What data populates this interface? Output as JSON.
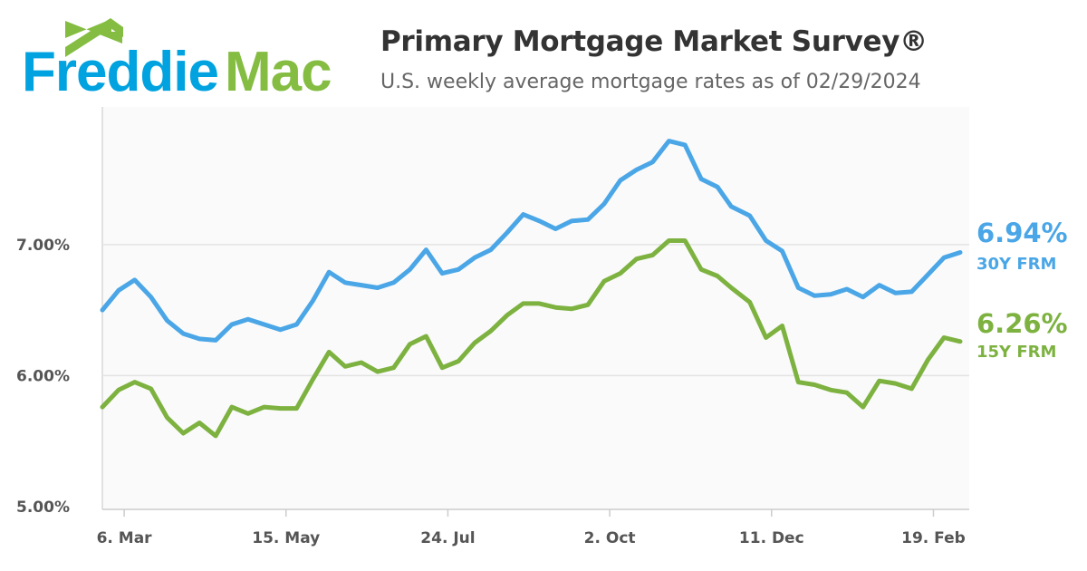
{
  "header": {
    "logo_text_1": "Freddie",
    "logo_text_2": "Mac",
    "title": "Primary Mortgage Market Survey®",
    "subtitle": "U.S. weekly average mortgage rates as of 02/29/2024"
  },
  "colors": {
    "blue": "#4aa6e6",
    "green": "#7db240",
    "logo_blue": "#00a3e0",
    "logo_green": "#84bd41"
  },
  "chart_data": {
    "type": "line",
    "title": "Primary Mortgage Market Survey®",
    "subtitle": "U.S. weekly average mortgage rates as of 02/29/2024",
    "x": [
      "2023-02-23",
      "2023-03-02",
      "2023-03-09",
      "2023-03-16",
      "2023-03-23",
      "2023-03-30",
      "2023-04-06",
      "2023-04-13",
      "2023-04-20",
      "2023-04-27",
      "2023-05-04",
      "2023-05-11",
      "2023-05-18",
      "2023-05-25",
      "2023-06-01",
      "2023-06-08",
      "2023-06-15",
      "2023-06-22",
      "2023-06-29",
      "2023-07-06",
      "2023-07-13",
      "2023-07-20",
      "2023-07-27",
      "2023-08-03",
      "2023-08-10",
      "2023-08-17",
      "2023-08-24",
      "2023-08-31",
      "2023-09-07",
      "2023-09-14",
      "2023-09-21",
      "2023-09-28",
      "2023-10-05",
      "2023-10-12",
      "2023-10-19",
      "2023-10-26",
      "2023-11-02",
      "2023-11-09",
      "2023-11-16",
      "2023-11-22",
      "2023-11-30",
      "2023-12-07",
      "2023-12-14",
      "2023-12-21",
      "2023-12-28",
      "2024-01-04",
      "2024-01-11",
      "2024-01-18",
      "2024-01-25",
      "2024-02-01",
      "2024-02-08",
      "2024-02-15",
      "2024-02-22",
      "2024-02-29"
    ],
    "series": [
      {
        "name": "30Y FRM",
        "color": "#4aa6e6",
        "last_label": "6.94%",
        "values": [
          6.5,
          6.65,
          6.73,
          6.6,
          6.42,
          6.32,
          6.28,
          6.27,
          6.39,
          6.43,
          6.39,
          6.35,
          6.39,
          6.57,
          6.79,
          6.71,
          6.69,
          6.67,
          6.71,
          6.81,
          6.96,
          6.78,
          6.81,
          6.9,
          6.96,
          7.09,
          7.23,
          7.18,
          7.12,
          7.18,
          7.19,
          7.31,
          7.49,
          7.57,
          7.63,
          7.79,
          7.76,
          7.5,
          7.44,
          7.29,
          7.22,
          7.03,
          6.95,
          6.67,
          6.61,
          6.62,
          6.66,
          6.6,
          6.69,
          6.63,
          6.64,
          6.77,
          6.9,
          6.94
        ]
      },
      {
        "name": "15Y FRM",
        "color": "#7db240",
        "last_label": "6.26%",
        "values": [
          5.76,
          5.89,
          5.95,
          5.9,
          5.68,
          5.56,
          5.64,
          5.54,
          5.76,
          5.71,
          5.76,
          5.75,
          5.75,
          5.97,
          6.18,
          6.07,
          6.1,
          6.03,
          6.06,
          6.24,
          6.3,
          6.06,
          6.11,
          6.25,
          6.34,
          6.46,
          6.55,
          6.55,
          6.52,
          6.51,
          6.54,
          6.72,
          6.78,
          6.89,
          6.92,
          7.03,
          7.03,
          6.81,
          6.76,
          6.67,
          6.56,
          6.29,
          6.38,
          5.95,
          5.93,
          5.89,
          5.87,
          5.76,
          5.96,
          5.94,
          5.9,
          6.12,
          6.29,
          6.26
        ]
      }
    ],
    "yticks": [
      {
        "value": 5,
        "label": "5.00%"
      },
      {
        "value": 6,
        "label": "6.00%"
      },
      {
        "value": 7,
        "label": "7.00%"
      }
    ],
    "xticks": [
      {
        "date": "2023-03-06",
        "label": "6. Mar"
      },
      {
        "date": "2023-05-15",
        "label": "15. May"
      },
      {
        "date": "2023-07-24",
        "label": "24. Jul"
      },
      {
        "date": "2023-10-02",
        "label": "2. Oct"
      },
      {
        "date": "2023-12-11",
        "label": "11. Dec"
      },
      {
        "date": "2024-02-19",
        "label": "19. Feb"
      }
    ],
    "ylim": [
      5,
      8.05
    ],
    "grid": "horizontal",
    "legend": "right, end labels"
  }
}
